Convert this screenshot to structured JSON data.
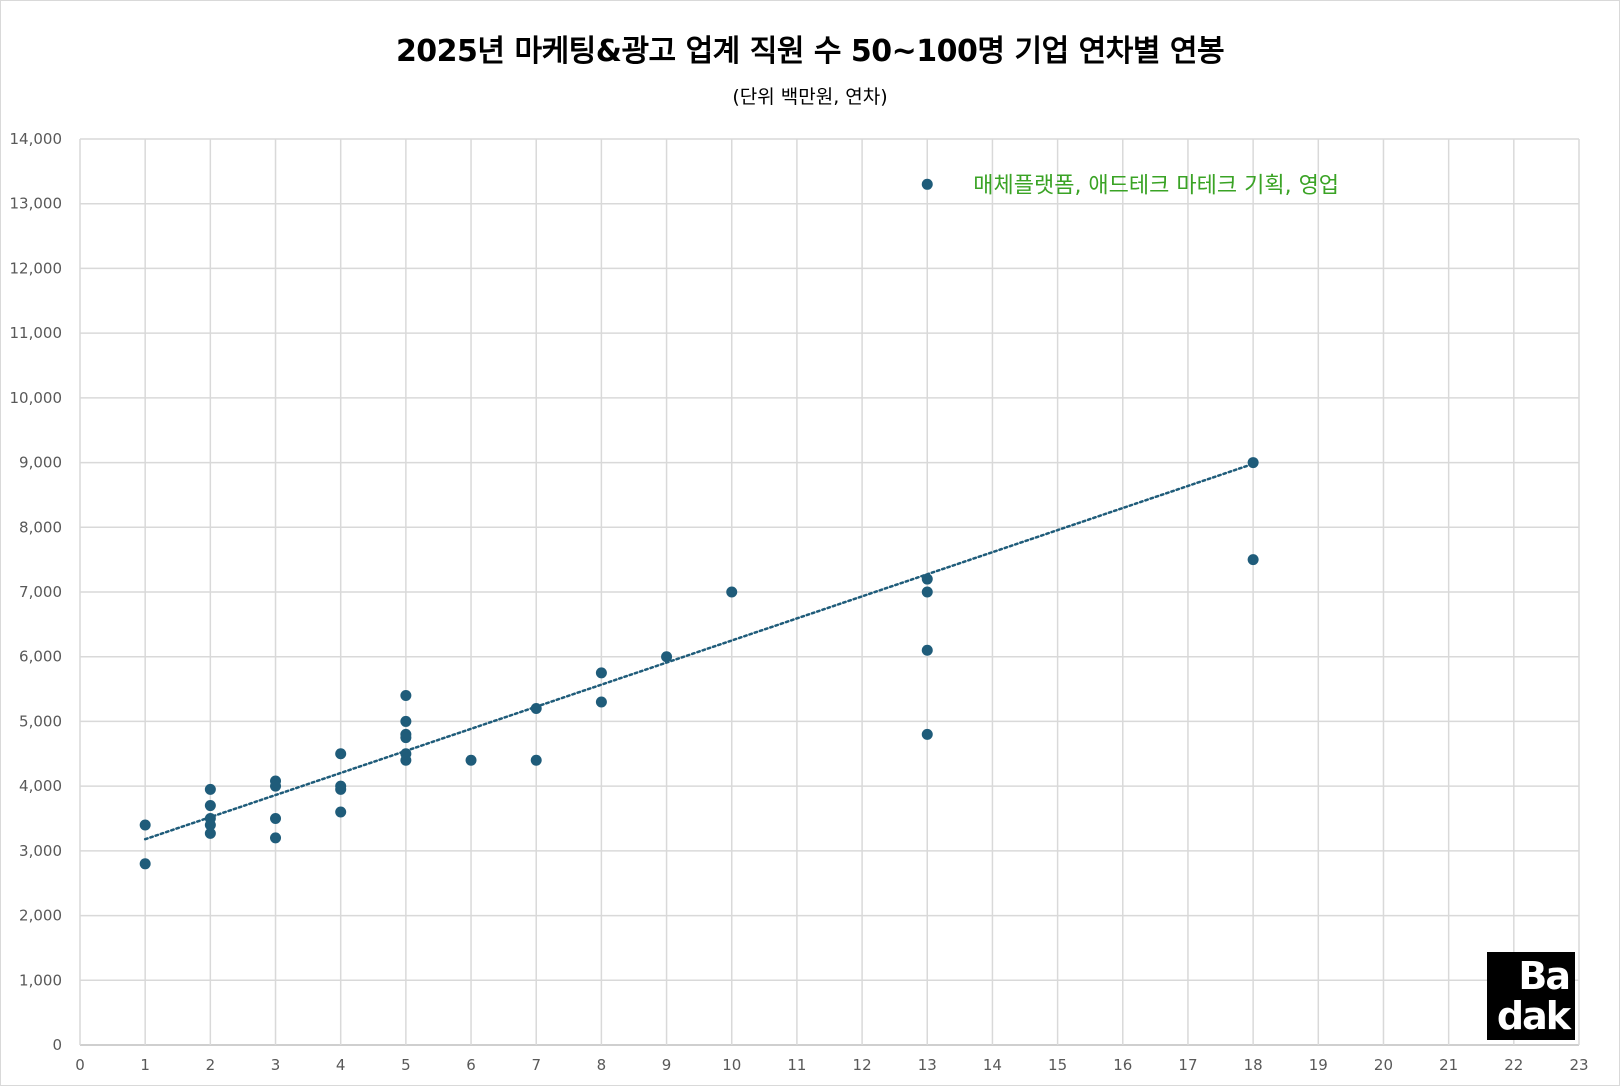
{
  "chart_data": {
    "type": "scatter",
    "title": "2025년 마케팅&광고 업계 직원 수 50~100명 기업 연차별 연봉",
    "subtitle": "(단위 백만원, 연차)",
    "xlim": [
      0,
      23
    ],
    "ylim": [
      0,
      14000
    ],
    "x_ticks": [
      0,
      1,
      2,
      3,
      4,
      5,
      6,
      7,
      8,
      9,
      10,
      11,
      12,
      13,
      14,
      15,
      16,
      17,
      18,
      19,
      20,
      21,
      22,
      23
    ],
    "y_ticks": [
      0,
      1000,
      2000,
      3000,
      4000,
      5000,
      6000,
      7000,
      8000,
      9000,
      10000,
      11000,
      12000,
      13000,
      14000
    ],
    "y_tick_labels": [
      "0",
      "1,000",
      "2,000",
      "3,000",
      "4,000",
      "5,000",
      "6,000",
      "7,000",
      "8,000",
      "9,000",
      "10,000",
      "11,000",
      "12,000",
      "13,000",
      "14,000"
    ],
    "grid": true,
    "point_color": "#1f5c7a",
    "points": [
      {
        "x": 1,
        "y": 3400
      },
      {
        "x": 1,
        "y": 2800
      },
      {
        "x": 2,
        "y": 3950
      },
      {
        "x": 2,
        "y": 3700
      },
      {
        "x": 2,
        "y": 3500
      },
      {
        "x": 2,
        "y": 3400
      },
      {
        "x": 2,
        "y": 3270
      },
      {
        "x": 3,
        "y": 4080
      },
      {
        "x": 3,
        "y": 4000
      },
      {
        "x": 3,
        "y": 3500
      },
      {
        "x": 3,
        "y": 3200
      },
      {
        "x": 4,
        "y": 4500
      },
      {
        "x": 4,
        "y": 4000
      },
      {
        "x": 4,
        "y": 3950
      },
      {
        "x": 4,
        "y": 3600
      },
      {
        "x": 5,
        "y": 5400
      },
      {
        "x": 5,
        "y": 5000
      },
      {
        "x": 5,
        "y": 4800
      },
      {
        "x": 5,
        "y": 4750
      },
      {
        "x": 5,
        "y": 4500
      },
      {
        "x": 5,
        "y": 4400
      },
      {
        "x": 6,
        "y": 4400
      },
      {
        "x": 7,
        "y": 5200
      },
      {
        "x": 7,
        "y": 4400
      },
      {
        "x": 8,
        "y": 5750
      },
      {
        "x": 8,
        "y": 5300
      },
      {
        "x": 9,
        "y": 6000
      },
      {
        "x": 10,
        "y": 7000
      },
      {
        "x": 13,
        "y": 13300
      },
      {
        "x": 13,
        "y": 7200
      },
      {
        "x": 13,
        "y": 7000
      },
      {
        "x": 13,
        "y": 6100
      },
      {
        "x": 13,
        "y": 4800
      },
      {
        "x": 18,
        "y": 9000
      },
      {
        "x": 18,
        "y": 7500
      }
    ],
    "trendline": {
      "type": "linear",
      "x_range": [
        1,
        18
      ],
      "y_start": 3180,
      "y_end": 8980,
      "style": "dotted",
      "color": "#1f5c7a"
    },
    "annotation": {
      "text": "매체플랫폼, 애드테크 마테크 기획, 영업",
      "color": "#3aa325",
      "near_point": {
        "x": 13,
        "y": 13300
      }
    }
  },
  "logo": {
    "line1": "Ba",
    "line2": "dak"
  }
}
